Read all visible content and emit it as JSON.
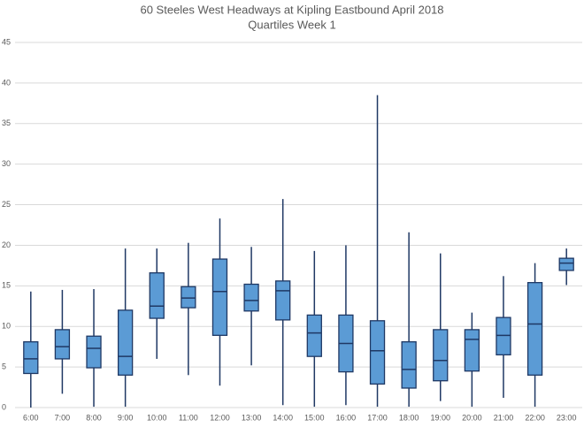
{
  "chart_data": {
    "type": "box",
    "title": "60 Steeles West Headways at Kipling Eastbound April 2018",
    "subtitle": "Quartiles Week 1",
    "categories": [
      "6:00",
      "7:00",
      "8:00",
      "9:00",
      "10:00",
      "11:00",
      "12:00",
      "13:00",
      "14:00",
      "15:00",
      "16:00",
      "17:00",
      "18:00",
      "19:00",
      "20:00",
      "21:00",
      "22:00",
      "23:00"
    ],
    "min": [
      0,
      1.7,
      0.1,
      0.1,
      6.0,
      4.0,
      2.7,
      5.2,
      0.3,
      0.1,
      0.3,
      0.1,
      0.1,
      0.8,
      0.1,
      1.2,
      0.1,
      15.1
    ],
    "q1": [
      4.2,
      6.0,
      4.9,
      4.0,
      11.0,
      12.3,
      8.9,
      11.9,
      10.8,
      6.3,
      4.4,
      2.9,
      2.4,
      3.3,
      4.5,
      6.5,
      4.0,
      16.9
    ],
    "median": [
      6.0,
      7.5,
      7.3,
      6.3,
      12.5,
      13.5,
      14.3,
      13.2,
      14.4,
      9.2,
      7.9,
      7.0,
      4.7,
      5.8,
      8.4,
      8.9,
      10.3,
      17.8
    ],
    "q3": [
      8.1,
      9.6,
      8.8,
      12.0,
      16.6,
      14.9,
      18.3,
      15.2,
      15.6,
      11.4,
      11.4,
      10.7,
      8.1,
      9.6,
      9.6,
      11.1,
      15.4,
      18.4
    ],
    "max": [
      14.3,
      14.5,
      14.6,
      19.6,
      19.6,
      20.3,
      23.3,
      19.8,
      25.7,
      19.3,
      20.0,
      38.5,
      21.6,
      19.0,
      11.7,
      16.2,
      17.8,
      19.6
    ],
    "color": "#5b9bd5",
    "edge_color": "#1f3864",
    "ylim": [
      0,
      45
    ],
    "yticks": [
      0,
      5,
      10,
      15,
      20,
      25,
      30,
      35,
      40,
      45
    ],
    "grid": true
  }
}
